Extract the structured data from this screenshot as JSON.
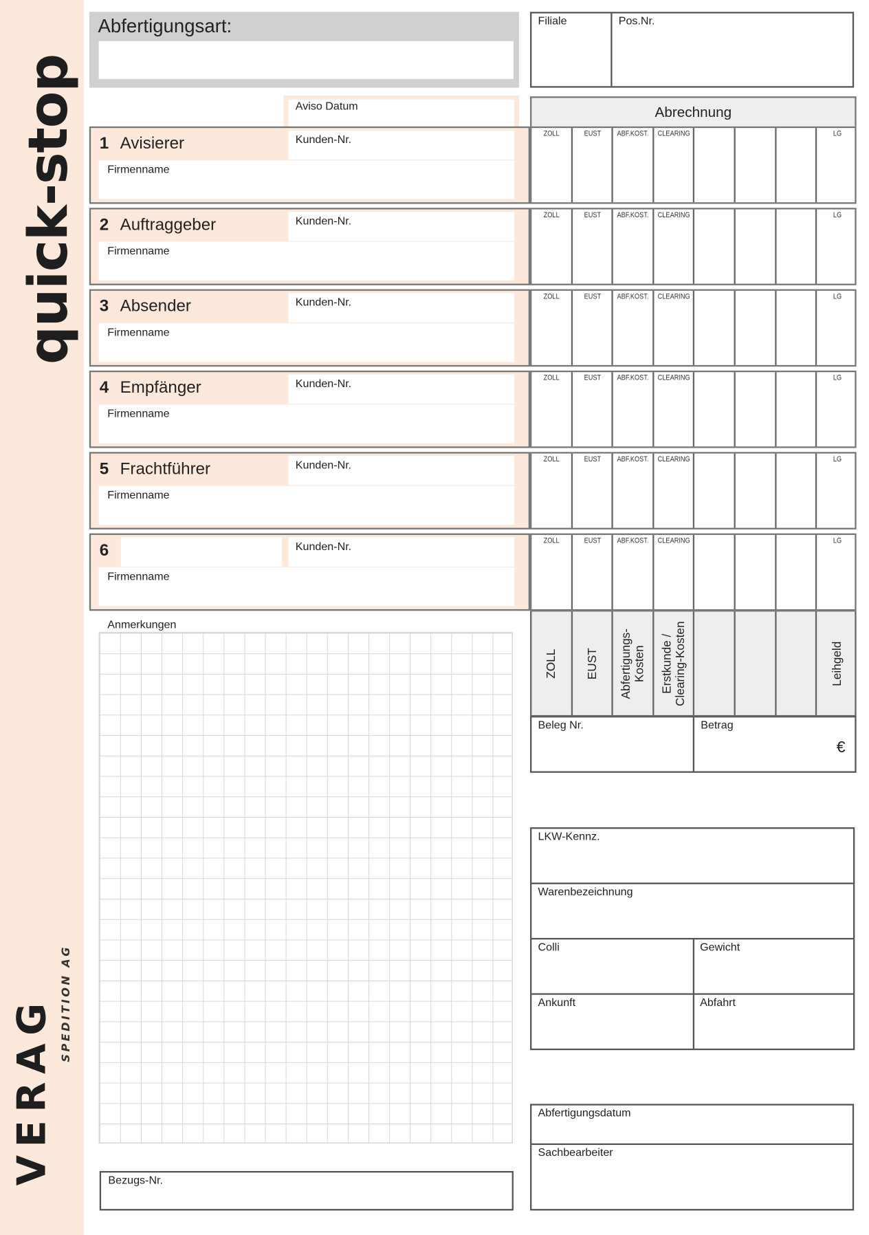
{
  "brand": {
    "product": "quick-stop",
    "logo": "VERAG",
    "logo_sub": "SPEDITION AG",
    "accent": "#fde8dc"
  },
  "header": {
    "abfertigungsart_label": "Abfertigungsart:",
    "filiale_label": "Filiale",
    "posnr_label": "Pos.Nr.",
    "aviso_label": "Aviso Datum"
  },
  "abrechnung": {
    "title": "Abrechnung",
    "short_columns": [
      "ZOLL",
      "EUST",
      "ABF.KOST.",
      "CLEARING",
      "",
      "",
      "",
      "LG"
    ],
    "long_columns": [
      "ZOLL",
      "EUST",
      "Abfertigungs-\nKosten",
      "Erstkunde /\nClearing-Kosten",
      "",
      "",
      "",
      "Leihgeld"
    ],
    "beleg_label": "Beleg Nr.",
    "betrag_label": "Betrag",
    "currency": "€"
  },
  "sections": [
    {
      "number": "1",
      "title": "Avisierer",
      "kunden_label": "Kunden-Nr.",
      "firma_label": "Firmenname"
    },
    {
      "number": "2",
      "title": "Auftraggeber",
      "kunden_label": "Kunden-Nr.",
      "firma_label": "Firmenname"
    },
    {
      "number": "3",
      "title": "Absender",
      "kunden_label": "Kunden-Nr.",
      "firma_label": "Firmenname"
    },
    {
      "number": "4",
      "title": "Empfänger",
      "kunden_label": "Kunden-Nr.",
      "firma_label": "Firmenname"
    },
    {
      "number": "5",
      "title": "Frachtführer",
      "kunden_label": "Kunden-Nr.",
      "firma_label": "Firmenname"
    },
    {
      "number": "6",
      "title": "",
      "kunden_label": "Kunden-Nr.",
      "firma_label": "Firmenname"
    }
  ],
  "notes": {
    "label": "Anmerkungen",
    "bezugs_label": "Bezugs-Nr."
  },
  "shipment": {
    "lkw": "LKW-Kennz.",
    "waren": "Warenbezeichnung",
    "colli": "Colli",
    "gewicht": "Gewicht",
    "ankunft": "Ankunft",
    "abfahrt": "Abfahrt"
  },
  "footer": {
    "datum": "Abfertigungsdatum",
    "bearbeiter": "Sachbearbeiter"
  }
}
